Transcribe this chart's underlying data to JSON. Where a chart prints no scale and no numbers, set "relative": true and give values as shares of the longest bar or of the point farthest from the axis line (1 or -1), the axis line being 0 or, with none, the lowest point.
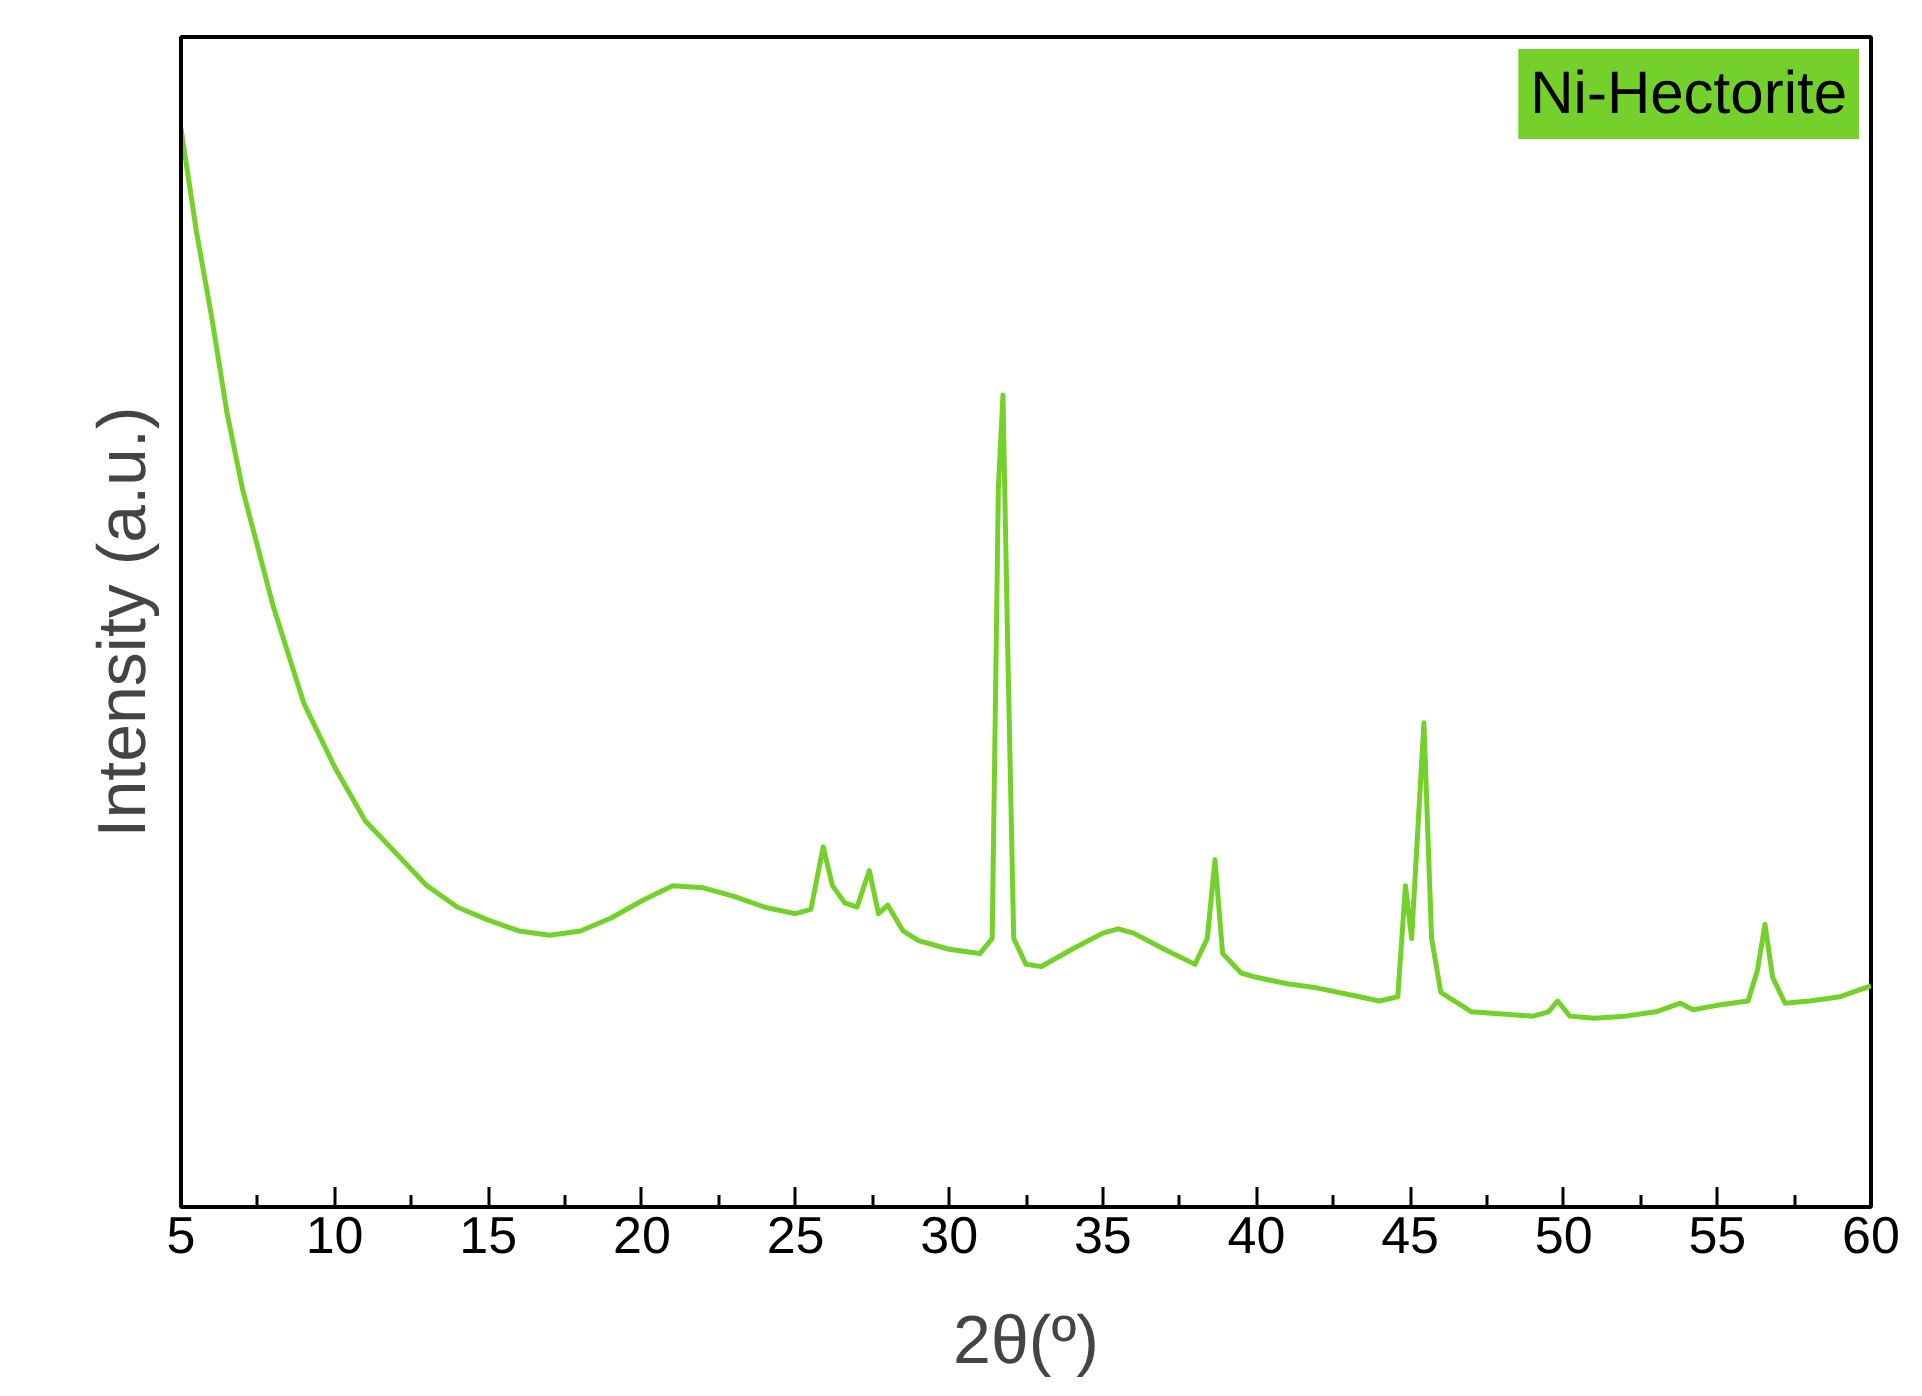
{
  "chart_data": {
    "type": "line",
    "xlabel": "2θ(º)",
    "ylabel": "Intensity (a.u.)",
    "relative": true,
    "legend": "top right",
    "tick_labels": "x",
    "grid": false,
    "xlim": [
      5,
      60
    ],
    "xticks": [
      5,
      10,
      15,
      20,
      25,
      30,
      35,
      40,
      45,
      50,
      55,
      60
    ],
    "series": [
      {
        "name": "Ni-Hectorite",
        "color": "#74d12c",
        "x": [
          5,
          5.5,
          6,
          6.5,
          7,
          8,
          9,
          10,
          11,
          12,
          13,
          14,
          15,
          16,
          17,
          18,
          19,
          20,
          21,
          22,
          23,
          24,
          25,
          25.5,
          25.9,
          26.2,
          26.6,
          27,
          27.4,
          27.7,
          28,
          28.5,
          29,
          30,
          31,
          31.4,
          31.6,
          31.75,
          31.9,
          32.1,
          32.5,
          33,
          34,
          35,
          35.5,
          36,
          37,
          38,
          38.4,
          38.65,
          38.9,
          39.5,
          40,
          41,
          42,
          43,
          44,
          44.6,
          44.85,
          45.05,
          45.45,
          45.7,
          46,
          47,
          48,
          49,
          49.5,
          49.8,
          50.2,
          51,
          52,
          53,
          53.8,
          54.2,
          55,
          56,
          56.3,
          56.55,
          56.8,
          57.2,
          58,
          59,
          60
        ],
        "values": [
          1.0,
          0.905,
          0.825,
          0.736,
          0.666,
          0.557,
          0.467,
          0.408,
          0.358,
          0.328,
          0.298,
          0.278,
          0.266,
          0.256,
          0.252,
          0.256,
          0.268,
          0.284,
          0.298,
          0.296,
          0.288,
          0.278,
          0.272,
          0.276,
          0.334,
          0.298,
          0.282,
          0.278,
          0.312,
          0.272,
          0.28,
          0.256,
          0.247,
          0.239,
          0.235,
          0.249,
          0.666,
          0.753,
          0.527,
          0.249,
          0.225,
          0.223,
          0.239,
          0.254,
          0.258,
          0.254,
          0.239,
          0.225,
          0.249,
          0.322,
          0.235,
          0.217,
          0.213,
          0.207,
          0.203,
          0.197,
          0.191,
          0.195,
          0.298,
          0.249,
          0.449,
          0.249,
          0.199,
          0.181,
          0.179,
          0.177,
          0.181,
          0.191,
          0.177,
          0.175,
          0.177,
          0.181,
          0.189,
          0.183,
          0.187,
          0.191,
          0.219,
          0.262,
          0.213,
          0.189,
          0.191,
          0.195,
          0.205
        ]
      }
    ]
  }
}
